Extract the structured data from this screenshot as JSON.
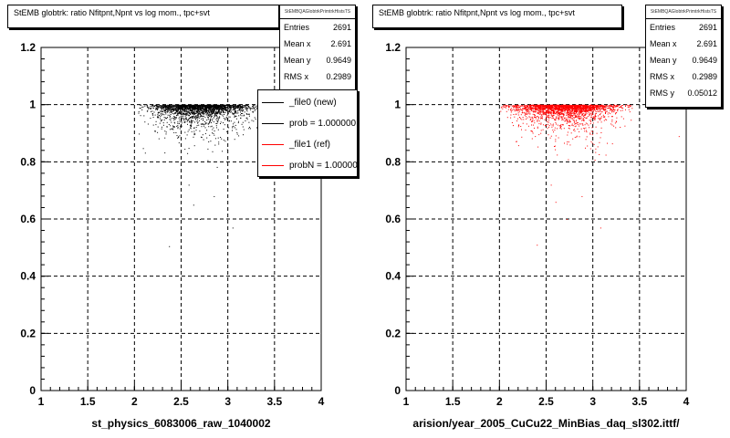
{
  "footer_text": "",
  "chart_data": [
    {
      "type": "scatter",
      "title": "StEMB globtrk: ratio Nfitpnt,Npnt vs log mom., tpc+svt",
      "xlabel": "st_physics_6083006_raw_1040002",
      "ylabel": "",
      "xlim": [
        1,
        4
      ],
      "ylim": [
        0,
        1.2
      ],
      "x_ticks": [
        "1",
        "1.5",
        "2",
        "2.5",
        "3",
        "3.5",
        "4"
      ],
      "y_ticks": [
        "0",
        "0.2",
        "0.4",
        "0.6",
        "0.8",
        "1",
        "1.2"
      ],
      "grid": true,
      "marker_color": "#000000",
      "stats": {
        "header": "StEMBQAGlobtrkPrimtrkHistsTS",
        "rows": [
          {
            "label": "Entries",
            "value": "2691"
          },
          {
            "label": "Mean x",
            "value": "2.691"
          },
          {
            "label": "Mean y",
            "value": "0.9649"
          },
          {
            "label": "RMS x",
            "value": "0.2989"
          }
        ]
      },
      "legend": {
        "placement": "top-right",
        "entries": [
          {
            "label": "_file0 (new)",
            "color": "#000000"
          },
          {
            "label": "prob = 1.000000",
            "color": "#000000"
          },
          {
            "label": "_file1 (ref)",
            "color": "#ff0000"
          },
          {
            "label": "probN = 1.000000",
            "color": "#ff0000"
          }
        ]
      },
      "distribution": {
        "x_band": [
          2.0,
          3.45
        ],
        "y_plateau": 1.0,
        "outliers": [
          [
            2.37,
            0.505
          ],
          [
            2.58,
            0.72
          ],
          [
            2.63,
            0.65
          ],
          [
            2.7,
            0.6
          ],
          [
            3.05,
            0.57
          ],
          [
            2.85,
            0.68
          ]
        ]
      }
    },
    {
      "type": "scatter",
      "title": "StEMB globtrk: ratio Nfitpnt,Npnt vs log mom., tpc+svt",
      "xlabel": "arision/year_2005_CuCu22_MinBias_daq_sl302.ittf/",
      "ylabel": "",
      "xlim": [
        1,
        4
      ],
      "ylim": [
        0,
        1.2
      ],
      "x_ticks": [
        "1",
        "1.5",
        "2",
        "2.5",
        "3",
        "3.5",
        "4"
      ],
      "y_ticks": [
        "0",
        "0.2",
        "0.4",
        "0.6",
        "0.8",
        "1",
        "1.2"
      ],
      "grid": true,
      "marker_color": "#ff0000",
      "stats": {
        "header": "StEMBQAGlobtrkPrimtrkHistsTS",
        "rows": [
          {
            "label": "Entries",
            "value": "2691"
          },
          {
            "label": "Mean x",
            "value": "2.691"
          },
          {
            "label": "Mean y",
            "value": "0.9649"
          },
          {
            "label": "RMS x",
            "value": "0.2989"
          },
          {
            "label": "RMS y",
            "value": "0.05012"
          }
        ]
      },
      "distribution": {
        "x_band": [
          2.0,
          3.95
        ],
        "y_plateau": 1.0,
        "outliers": [
          [
            2.4,
            0.51
          ],
          [
            2.55,
            0.72
          ],
          [
            2.6,
            0.66
          ],
          [
            2.72,
            0.6
          ],
          [
            3.08,
            0.57
          ],
          [
            2.88,
            0.68
          ],
          [
            3.92,
            0.89
          ]
        ]
      }
    }
  ]
}
